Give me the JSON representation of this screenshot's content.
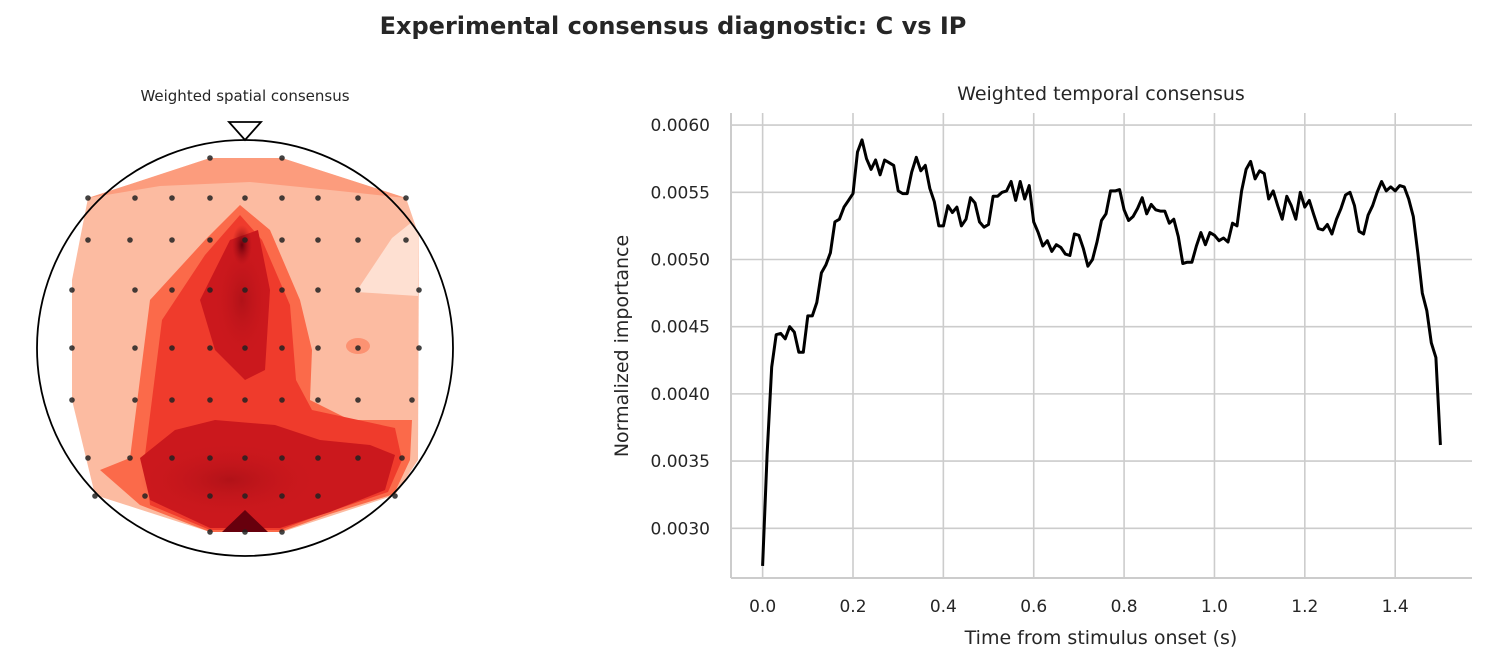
{
  "figure": {
    "suptitle": "Experimental consensus diagnostic: C vs IP"
  },
  "chart_data": [
    {
      "type": "heatmap",
      "title": "Weighted spatial consensus",
      "description_kind": "scalp topographic map",
      "colormap": "Reds",
      "head_outline": true,
      "nose_marker": true,
      "electrode_markers": true,
      "electrode_grid_rows": [
        2,
        7,
        9,
        9,
        9,
        9,
        9,
        7,
        2
      ],
      "high_value_region": "central and posterior midline"
    },
    {
      "type": "line",
      "title": "Weighted temporal consensus",
      "xlabel": "Time from stimulus onset (s)",
      "ylabel": "Normalized importance",
      "xlim": [
        -0.07,
        1.57
      ],
      "ylim": [
        0.00263,
        0.00609
      ],
      "xticks": [
        0.0,
        0.2,
        0.4,
        0.6,
        0.8,
        1.0,
        1.2,
        1.4
      ],
      "xtick_labels": [
        "0.0",
        "0.2",
        "0.4",
        "0.6",
        "0.8",
        "1.0",
        "1.2",
        "1.4"
      ],
      "yticks": [
        0.003,
        0.0035,
        0.004,
        0.0045,
        0.005,
        0.0055,
        0.006
      ],
      "ytick_labels": [
        "0.0030",
        "0.0035",
        "0.0040",
        "0.0045",
        "0.0050",
        "0.0055",
        "0.0060"
      ],
      "grid": true,
      "line_color": "#000000",
      "series": [
        {
          "x": [
            0.0,
            0.01,
            0.02,
            0.03,
            0.04,
            0.05,
            0.06,
            0.07,
            0.08,
            0.09,
            0.1,
            0.11,
            0.12,
            0.13,
            0.14,
            0.15,
            0.16,
            0.17,
            0.18,
            0.19,
            0.2,
            0.21,
            0.22,
            0.23,
            0.24,
            0.25,
            0.26,
            0.27,
            0.28,
            0.29,
            0.3,
            0.31,
            0.32,
            0.33,
            0.34,
            0.35,
            0.36,
            0.37,
            0.38,
            0.39,
            0.4,
            0.41,
            0.42,
            0.43,
            0.44,
            0.45,
            0.46,
            0.47,
            0.48,
            0.49,
            0.5,
            0.51,
            0.52,
            0.53,
            0.54,
            0.55,
            0.56,
            0.57,
            0.58,
            0.59,
            0.6,
            0.61,
            0.62,
            0.63,
            0.64,
            0.65,
            0.66,
            0.67,
            0.68,
            0.69,
            0.7,
            0.71,
            0.72,
            0.73,
            0.74,
            0.75,
            0.76,
            0.77,
            0.78,
            0.79,
            0.8,
            0.81,
            0.82,
            0.83,
            0.84,
            0.85,
            0.86,
            0.87,
            0.88,
            0.89,
            0.9,
            0.91,
            0.92,
            0.93,
            0.94,
            0.95,
            0.96,
            0.97,
            0.98,
            0.99,
            1.0,
            1.01,
            1.02,
            1.03,
            1.04,
            1.05,
            1.06,
            1.07,
            1.08,
            1.09,
            1.1,
            1.11,
            1.12,
            1.13,
            1.14,
            1.15,
            1.16,
            1.17,
            1.18,
            1.19,
            1.2,
            1.21,
            1.22,
            1.23,
            1.24,
            1.25,
            1.26,
            1.27,
            1.28,
            1.29,
            1.3,
            1.31,
            1.32,
            1.33,
            1.34,
            1.35,
            1.36,
            1.37,
            1.38,
            1.39,
            1.4,
            1.41,
            1.42,
            1.43,
            1.44,
            1.45,
            1.46,
            1.47,
            1.48,
            1.49,
            1.5
          ],
          "y": [
            0.00272,
            0.00355,
            0.0042,
            0.00444,
            0.00445,
            0.00441,
            0.0045,
            0.00446,
            0.00431,
            0.00431,
            0.00458,
            0.00458,
            0.00468,
            0.0049,
            0.00496,
            0.00505,
            0.00528,
            0.0053,
            0.00539,
            0.00544,
            0.00549,
            0.0058,
            0.00589,
            0.00575,
            0.00567,
            0.00574,
            0.00563,
            0.00574,
            0.00572,
            0.0057,
            0.00551,
            0.00549,
            0.00549,
            0.00565,
            0.00576,
            0.00566,
            0.0057,
            0.00553,
            0.00543,
            0.00525,
            0.00525,
            0.0054,
            0.00535,
            0.00539,
            0.00525,
            0.0053,
            0.00546,
            0.00542,
            0.00528,
            0.00524,
            0.00526,
            0.00547,
            0.00547,
            0.0055,
            0.00551,
            0.00558,
            0.00544,
            0.00558,
            0.00545,
            0.00555,
            0.00528,
            0.0052,
            0.0051,
            0.00514,
            0.00506,
            0.00511,
            0.00509,
            0.00504,
            0.00503,
            0.00519,
            0.00518,
            0.00508,
            0.00495,
            0.005,
            0.00513,
            0.00529,
            0.00534,
            0.00551,
            0.00551,
            0.00552,
            0.00537,
            0.00529,
            0.00532,
            0.00538,
            0.00546,
            0.00534,
            0.00541,
            0.00537,
            0.00536,
            0.00536,
            0.00527,
            0.0053,
            0.00517,
            0.00497,
            0.00498,
            0.00498,
            0.0051,
            0.0052,
            0.00511,
            0.0052,
            0.00518,
            0.00514,
            0.00516,
            0.00513,
            0.00527,
            0.00525,
            0.00551,
            0.00567,
            0.00573,
            0.0056,
            0.00566,
            0.00564,
            0.00545,
            0.00551,
            0.0054,
            0.0053,
            0.00547,
            0.0054,
            0.0053,
            0.0055,
            0.00539,
            0.00544,
            0.00533,
            0.00523,
            0.00522,
            0.00526,
            0.00519,
            0.0053,
            0.00538,
            0.00548,
            0.0055,
            0.0054,
            0.00521,
            0.00519,
            0.00533,
            0.0054,
            0.0055,
            0.00558,
            0.00551,
            0.00554,
            0.00551,
            0.00555,
            0.00554,
            0.00545,
            0.00532,
            0.00505,
            0.00475,
            0.00462,
            0.00438,
            0.00427,
            0.00362
          ]
        }
      ]
    }
  ]
}
